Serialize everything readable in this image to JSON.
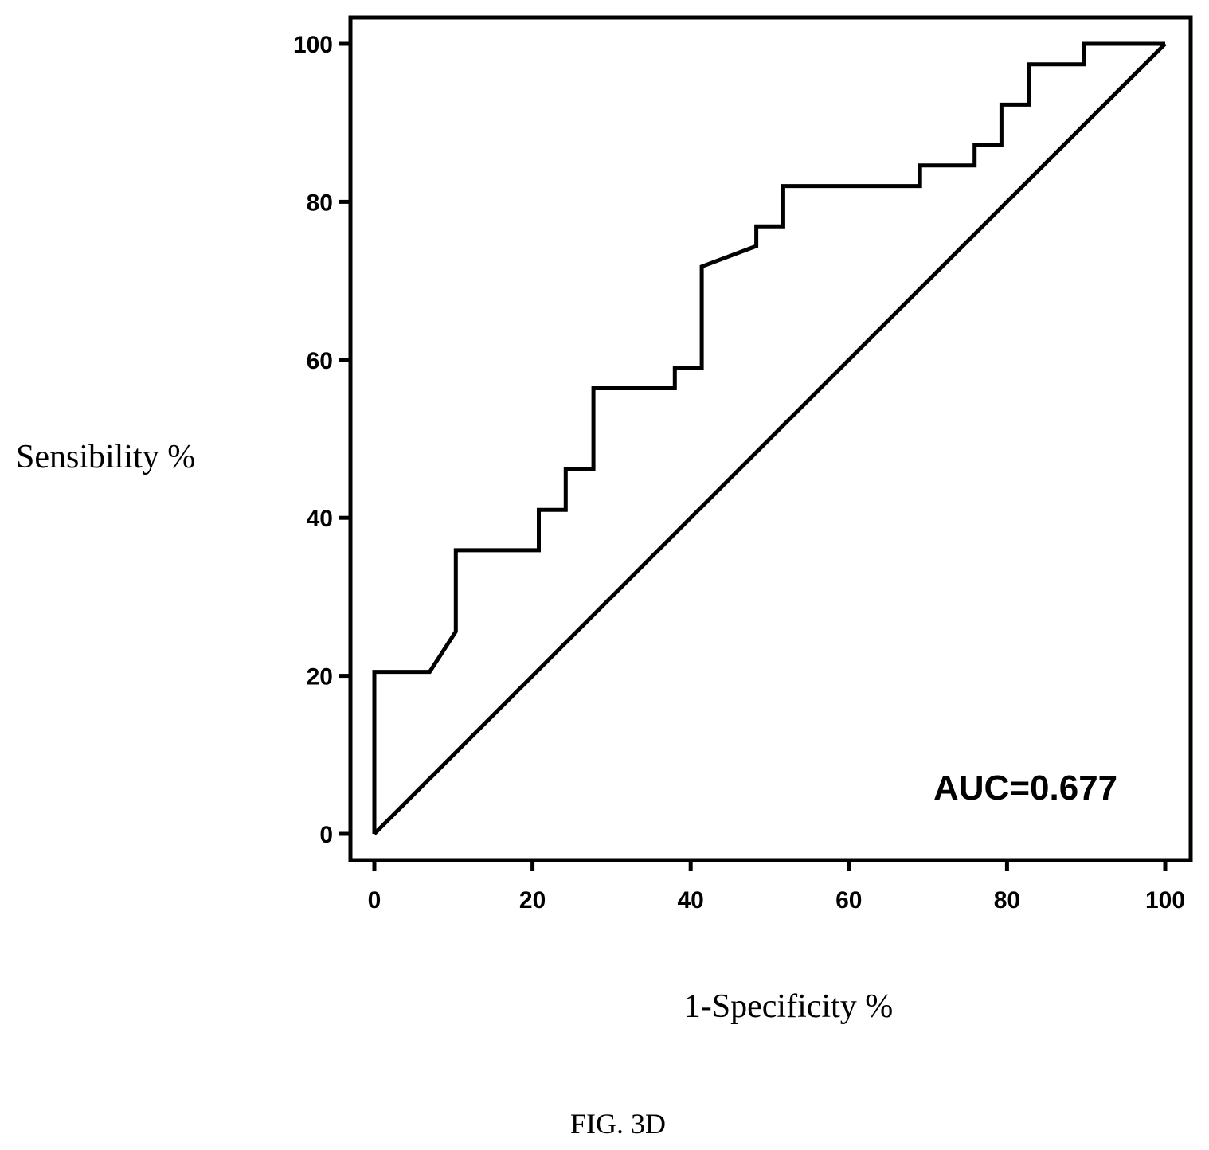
{
  "chart_data": {
    "type": "line",
    "xlabel": "1-Specificity %",
    "ylabel": "Sensibility %",
    "xlim": [
      0,
      100
    ],
    "ylim": [
      0,
      100
    ],
    "xticks": [
      0,
      20,
      40,
      60,
      80,
      100
    ],
    "yticks": [
      0,
      20,
      40,
      60,
      80,
      100
    ],
    "grid": false,
    "annotation": "AUC=0.677",
    "series": [
      {
        "x": [
          0,
          0,
          7,
          10.3,
          10.3,
          20.8,
          20.8,
          24.2,
          24.2,
          27.7,
          27.7,
          38,
          38,
          41.4,
          41.4,
          48.3,
          48.3,
          51.7,
          51.7,
          69,
          69,
          75.9,
          75.9,
          79.3,
          79.3,
          82.8,
          82.8,
          89.7,
          89.7,
          100
        ],
        "y": [
          0,
          20.5,
          20.5,
          25.6,
          35.9,
          35.9,
          41,
          41,
          46.2,
          46.2,
          56.4,
          56.4,
          59,
          59,
          71.8,
          74.4,
          76.9,
          76.9,
          82,
          82,
          84.6,
          84.6,
          87.2,
          87.2,
          92.3,
          92.3,
          97.4,
          97.4,
          100,
          100
        ]
      },
      {
        "x": [
          0,
          100
        ],
        "y": [
          0,
          100
        ]
      }
    ]
  },
  "figure_label": "FIG. 3D"
}
